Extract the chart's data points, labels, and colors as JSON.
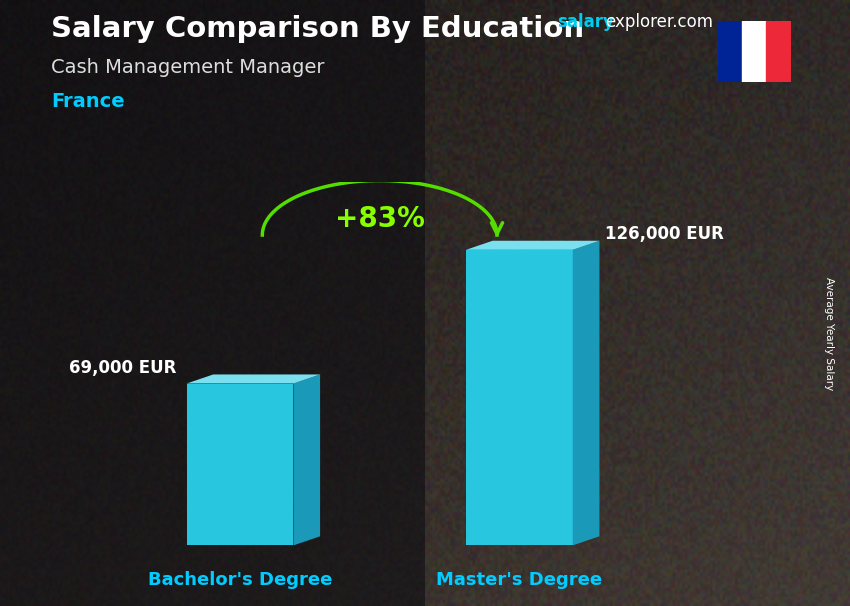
{
  "title_main": "Salary Comparison By Education",
  "title_sub": "Cash Management Manager",
  "country": "France",
  "website_salary": "salary",
  "website_explorer": "explorer",
  "website_com": ".com",
  "right_label": "Average Yearly Salary",
  "categories": [
    "Bachelor's Degree",
    "Master's Degree"
  ],
  "values": [
    69000,
    126000
  ],
  "value_labels": [
    "69,000 EUR",
    "126,000 EUR"
  ],
  "pct_change": "+83%",
  "bar_color_front": "#29c6e0",
  "bar_color_top": "#7adfef",
  "bar_color_right": "#1a9ab8",
  "bg_color": "#111111",
  "title_color": "#ffffff",
  "subtitle_color": "#dddddd",
  "country_color": "#00ccff",
  "value_label_color": "#ffffff",
  "xlabel_color": "#00ccff",
  "pct_color": "#88ff00",
  "arrow_color": "#55dd00",
  "website_salary_color": "#00ccee",
  "website_rest_color": "#ffffff",
  "flag_blue": "#002395",
  "flag_white": "#ffffff",
  "flag_red": "#ED2939",
  "bar_width": 0.13,
  "bar_positions": [
    0.28,
    0.62
  ],
  "ylim": [
    0,
    155000
  ],
  "figsize": [
    8.5,
    6.06
  ],
  "dpi": 100
}
